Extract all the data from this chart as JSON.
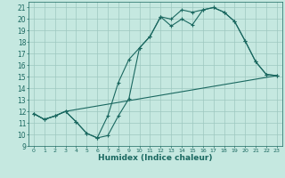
{
  "title": "",
  "xlabel": "Humidex (Indice chaleur)",
  "bg_color": "#c5e8e0",
  "grid_color": "#9dc8c0",
  "line_color": "#1a6860",
  "xlim": [
    -0.5,
    23.5
  ],
  "ylim": [
    9,
    21.5
  ],
  "yticks": [
    9,
    10,
    11,
    12,
    13,
    14,
    15,
    16,
    17,
    18,
    19,
    20,
    21
  ],
  "xticks": [
    0,
    1,
    2,
    3,
    4,
    5,
    6,
    7,
    8,
    9,
    10,
    11,
    12,
    13,
    14,
    15,
    16,
    17,
    18,
    19,
    20,
    21,
    22,
    23
  ],
  "line1_x": [
    0,
    1,
    2,
    3,
    4,
    5,
    6,
    7,
    8,
    9,
    10,
    11,
    12,
    13,
    14,
    15,
    16,
    17,
    18,
    19,
    20,
    21,
    22,
    23
  ],
  "line1_y": [
    11.8,
    11.3,
    11.6,
    12.0,
    11.1,
    10.1,
    9.7,
    9.9,
    11.6,
    13.1,
    17.5,
    18.5,
    20.2,
    19.4,
    20.0,
    19.5,
    20.8,
    21.0,
    20.6,
    19.8,
    18.1,
    16.3,
    15.2,
    15.1
  ],
  "line2_x": [
    0,
    1,
    2,
    3,
    4,
    5,
    6,
    7,
    8,
    9,
    10,
    11,
    12,
    13,
    14,
    15,
    16,
    17,
    18,
    19,
    20,
    21,
    22,
    23
  ],
  "line2_y": [
    11.8,
    11.3,
    11.6,
    12.0,
    11.1,
    10.1,
    9.7,
    11.6,
    14.5,
    16.5,
    17.5,
    18.5,
    20.2,
    20.0,
    20.8,
    20.6,
    20.8,
    21.0,
    20.6,
    19.8,
    18.1,
    16.3,
    15.2,
    15.1
  ],
  "line3_x": [
    0,
    1,
    2,
    3,
    23
  ],
  "line3_y": [
    11.8,
    11.3,
    11.6,
    12.0,
    15.1
  ]
}
